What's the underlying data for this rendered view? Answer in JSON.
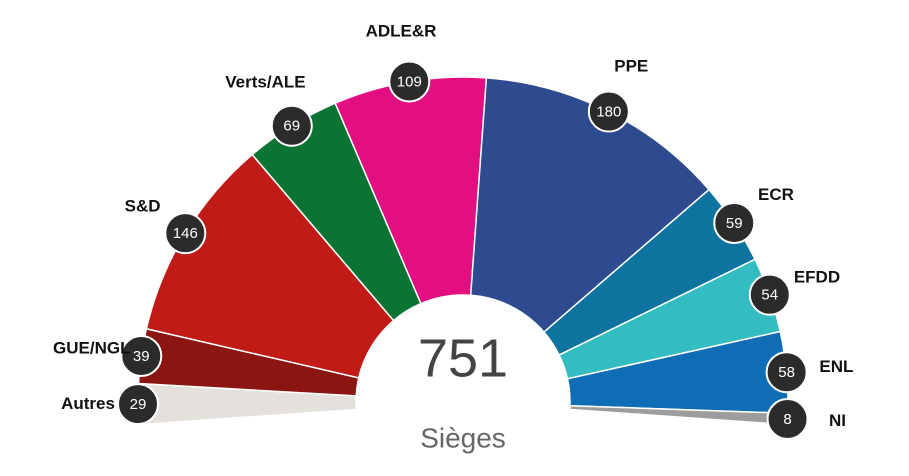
{
  "chart_data": {
    "type": "hemicycle",
    "categories": [
      "Autres",
      "GUE/NGL",
      "S&D",
      "Verts/ALE",
      "ADLE&R",
      "PPE",
      "ECR",
      "EFDD",
      "ENL",
      "NI"
    ],
    "values": [
      29,
      39,
      146,
      69,
      109,
      180,
      59,
      54,
      58,
      8
    ],
    "colors": [
      "#e4e1dd",
      "#8b1611",
      "#c11b17",
      "#0c7432",
      "#e20e82",
      "#2d4b8e",
      "#0e739e",
      "#33bcc1",
      "#0f6db5",
      "#9d9d9d"
    ],
    "total": 751,
    "total_label": "Sièges"
  }
}
